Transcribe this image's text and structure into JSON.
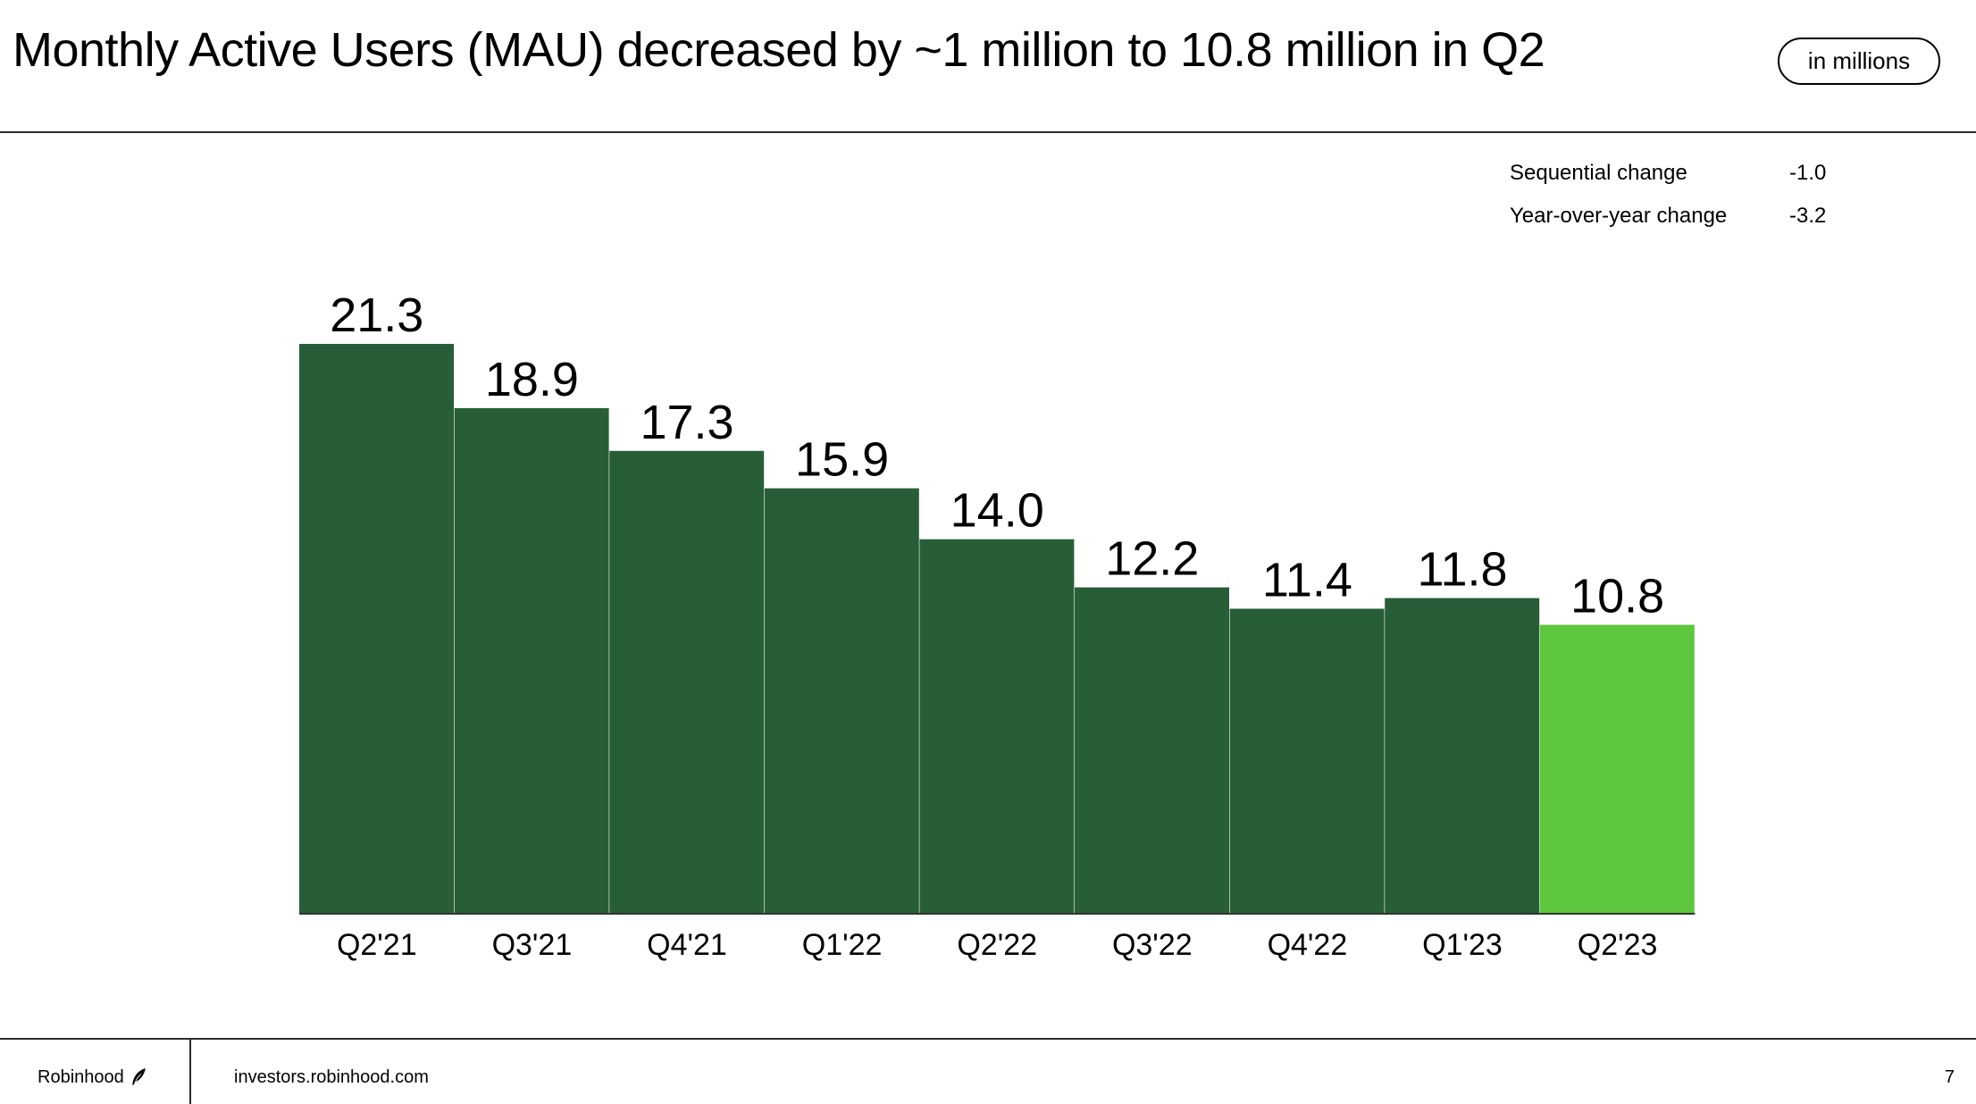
{
  "header": {
    "title": "Monthly Active Users (MAU) decreased by ~1 million to 10.8 million in Q2",
    "unit_badge": "in millions"
  },
  "stats": [
    {
      "label": "Sequential change",
      "value": "-1.0"
    },
    {
      "label": "Year-over-year change",
      "value": "-3.2"
    }
  ],
  "chart_data": {
    "type": "bar",
    "categories": [
      "Q2'21",
      "Q3'21",
      "Q4'21",
      "Q1'22",
      "Q2'22",
      "Q3'22",
      "Q4'22",
      "Q1'23",
      "Q2'23"
    ],
    "values": [
      21.3,
      18.9,
      17.3,
      15.9,
      14.0,
      12.2,
      11.4,
      11.8,
      10.8
    ],
    "data_labels": [
      "21.3",
      "18.9",
      "17.3",
      "15.9",
      "14.0",
      "12.2",
      "11.4",
      "11.8",
      "10.8"
    ],
    "highlight_index": 8,
    "colors": {
      "bar": "#275e37",
      "highlight": "#5cc73c",
      "axis": "#333333"
    },
    "ylim": [
      0,
      21.3
    ],
    "grid": false,
    "legend": "none",
    "title": "",
    "xlabel": "",
    "ylabel": ""
  },
  "footer": {
    "brand": "Robinhood",
    "brand_icon": "feather-icon",
    "url": "investors.robinhood.com",
    "page": "7"
  }
}
